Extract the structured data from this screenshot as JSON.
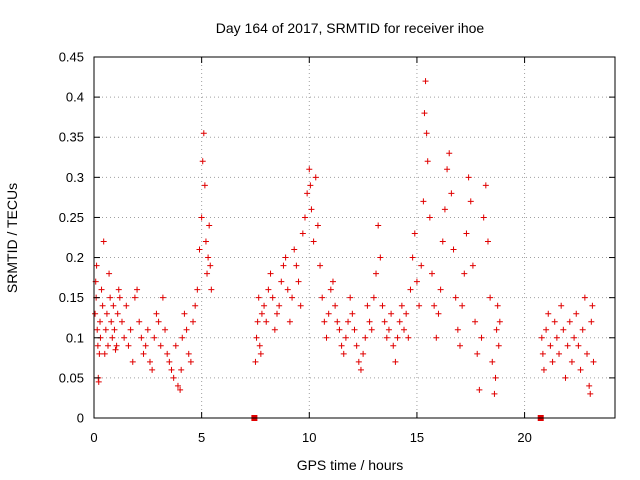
{
  "chart_data": {
    "type": "scatter",
    "title": "Day 164 of 2017, SRMTID for receiver ihoe",
    "xlabel": "GPS time / hours",
    "ylabel": "SRMTID / TECUs",
    "xlim": [
      0,
      24.2
    ],
    "ylim": [
      0,
      0.45
    ],
    "grid": true,
    "marker": "+",
    "color": "#e00000",
    "x_ticks": [
      0,
      5,
      10,
      15,
      20
    ],
    "x_tick_labels": [
      "0",
      "5",
      "10",
      "15",
      "20"
    ],
    "y_ticks": [
      0,
      0.05,
      0.1,
      0.15,
      0.2,
      0.25,
      0.3,
      0.35,
      0.4,
      0.45
    ],
    "y_tick_labels": [
      "0",
      "0.05",
      "0.1",
      "0.15",
      "0.2",
      "0.25",
      "0.3",
      "0.35",
      "0.4",
      "0.45"
    ],
    "gap_markers_x": [
      7.45,
      20.75
    ],
    "series": [
      {
        "name": "SRMTID",
        "points": [
          [
            0.05,
            0.13
          ],
          [
            0.08,
            0.17
          ],
          [
            0.1,
            0.15
          ],
          [
            0.12,
            0.19
          ],
          [
            0.15,
            0.11
          ],
          [
            0.18,
            0.09
          ],
          [
            0.2,
            0.05
          ],
          [
            0.22,
            0.045
          ],
          [
            0.25,
            0.08
          ],
          [
            0.28,
            0.12
          ],
          [
            0.3,
            0.1
          ],
          [
            0.35,
            0.16
          ],
          [
            0.4,
            0.14
          ],
          [
            0.45,
            0.22
          ],
          [
            0.5,
            0.08
          ],
          [
            0.55,
            0.11
          ],
          [
            0.6,
            0.13
          ],
          [
            0.65,
            0.09
          ],
          [
            0.7,
            0.18
          ],
          [
            0.75,
            0.15
          ],
          [
            0.8,
            0.12
          ],
          [
            0.85,
            0.1
          ],
          [
            0.9,
            0.14
          ],
          [
            0.95,
            0.11
          ],
          [
            1.0,
            0.085
          ],
          [
            1.05,
            0.09
          ],
          [
            1.1,
            0.13
          ],
          [
            1.15,
            0.16
          ],
          [
            1.2,
            0.15
          ],
          [
            1.3,
            0.12
          ],
          [
            1.4,
            0.1
          ],
          [
            1.5,
            0.14
          ],
          [
            1.6,
            0.09
          ],
          [
            1.7,
            0.11
          ],
          [
            1.8,
            0.07
          ],
          [
            1.9,
            0.15
          ],
          [
            2.0,
            0.16
          ],
          [
            2.1,
            0.12
          ],
          [
            2.2,
            0.1
          ],
          [
            2.3,
            0.08
          ],
          [
            2.4,
            0.09
          ],
          [
            2.5,
            0.11
          ],
          [
            2.6,
            0.07
          ],
          [
            2.7,
            0.06
          ],
          [
            2.8,
            0.1
          ],
          [
            2.9,
            0.13
          ],
          [
            3.0,
            0.12
          ],
          [
            3.1,
            0.09
          ],
          [
            3.2,
            0.15
          ],
          [
            3.3,
            0.11
          ],
          [
            3.4,
            0.08
          ],
          [
            3.5,
            0.07
          ],
          [
            3.6,
            0.06
          ],
          [
            3.7,
            0.05
          ],
          [
            3.8,
            0.09
          ],
          [
            3.9,
            0.04
          ],
          [
            4.0,
            0.035
          ],
          [
            4.05,
            0.06
          ],
          [
            4.1,
            0.1
          ],
          [
            4.2,
            0.13
          ],
          [
            4.3,
            0.11
          ],
          [
            4.4,
            0.08
          ],
          [
            4.5,
            0.07
          ],
          [
            4.6,
            0.12
          ],
          [
            4.7,
            0.14
          ],
          [
            4.8,
            0.16
          ],
          [
            4.9,
            0.21
          ],
          [
            5.0,
            0.25
          ],
          [
            5.05,
            0.32
          ],
          [
            5.1,
            0.355
          ],
          [
            5.15,
            0.29
          ],
          [
            5.2,
            0.22
          ],
          [
            5.25,
            0.18
          ],
          [
            5.3,
            0.2
          ],
          [
            5.35,
            0.24
          ],
          [
            5.4,
            0.19
          ],
          [
            5.45,
            0.16
          ],
          [
            7.5,
            0.07
          ],
          [
            7.55,
            0.1
          ],
          [
            7.6,
            0.12
          ],
          [
            7.65,
            0.15
          ],
          [
            7.7,
            0.09
          ],
          [
            7.75,
            0.08
          ],
          [
            7.8,
            0.13
          ],
          [
            7.9,
            0.14
          ],
          [
            8.0,
            0.12
          ],
          [
            8.1,
            0.16
          ],
          [
            8.2,
            0.18
          ],
          [
            8.3,
            0.15
          ],
          [
            8.4,
            0.11
          ],
          [
            8.5,
            0.13
          ],
          [
            8.6,
            0.14
          ],
          [
            8.7,
            0.17
          ],
          [
            8.8,
            0.19
          ],
          [
            8.9,
            0.2
          ],
          [
            9.0,
            0.16
          ],
          [
            9.1,
            0.12
          ],
          [
            9.2,
            0.15
          ],
          [
            9.3,
            0.21
          ],
          [
            9.4,
            0.19
          ],
          [
            9.5,
            0.17
          ],
          [
            9.6,
            0.14
          ],
          [
            9.7,
            0.23
          ],
          [
            9.8,
            0.25
          ],
          [
            9.9,
            0.28
          ],
          [
            10.0,
            0.31
          ],
          [
            10.05,
            0.29
          ],
          [
            10.1,
            0.26
          ],
          [
            10.2,
            0.22
          ],
          [
            10.3,
            0.3
          ],
          [
            10.4,
            0.24
          ],
          [
            10.5,
            0.19
          ],
          [
            10.6,
            0.15
          ],
          [
            10.7,
            0.12
          ],
          [
            10.8,
            0.1
          ],
          [
            10.9,
            0.13
          ],
          [
            11.0,
            0.16
          ],
          [
            11.1,
            0.17
          ],
          [
            11.2,
            0.14
          ],
          [
            11.3,
            0.12
          ],
          [
            11.4,
            0.11
          ],
          [
            11.5,
            0.09
          ],
          [
            11.6,
            0.08
          ],
          [
            11.7,
            0.1
          ],
          [
            11.8,
            0.12
          ],
          [
            11.9,
            0.15
          ],
          [
            12.0,
            0.13
          ],
          [
            12.1,
            0.11
          ],
          [
            12.2,
            0.09
          ],
          [
            12.3,
            0.07
          ],
          [
            12.4,
            0.06
          ],
          [
            12.5,
            0.08
          ],
          [
            12.6,
            0.1
          ],
          [
            12.7,
            0.14
          ],
          [
            12.8,
            0.12
          ],
          [
            12.9,
            0.11
          ],
          [
            13.0,
            0.15
          ],
          [
            13.1,
            0.18
          ],
          [
            13.2,
            0.24
          ],
          [
            13.3,
            0.2
          ],
          [
            13.4,
            0.14
          ],
          [
            13.5,
            0.12
          ],
          [
            13.6,
            0.1
          ],
          [
            13.7,
            0.11
          ],
          [
            13.8,
            0.13
          ],
          [
            13.9,
            0.09
          ],
          [
            14.0,
            0.07
          ],
          [
            14.1,
            0.1
          ],
          [
            14.2,
            0.12
          ],
          [
            14.3,
            0.14
          ],
          [
            14.4,
            0.11
          ],
          [
            14.5,
            0.13
          ],
          [
            14.6,
            0.1
          ],
          [
            14.7,
            0.16
          ],
          [
            14.8,
            0.2
          ],
          [
            14.9,
            0.23
          ],
          [
            15.0,
            0.17
          ],
          [
            15.1,
            0.14
          ],
          [
            15.2,
            0.19
          ],
          [
            15.3,
            0.27
          ],
          [
            15.35,
            0.38
          ],
          [
            15.4,
            0.42
          ],
          [
            15.45,
            0.355
          ],
          [
            15.5,
            0.32
          ],
          [
            15.6,
            0.25
          ],
          [
            15.7,
            0.18
          ],
          [
            15.8,
            0.14
          ],
          [
            15.9,
            0.1
          ],
          [
            16.0,
            0.13
          ],
          [
            16.1,
            0.16
          ],
          [
            16.2,
            0.22
          ],
          [
            16.3,
            0.26
          ],
          [
            16.4,
            0.31
          ],
          [
            16.5,
            0.33
          ],
          [
            16.6,
            0.28
          ],
          [
            16.7,
            0.21
          ],
          [
            16.8,
            0.15
          ],
          [
            16.9,
            0.11
          ],
          [
            17.0,
            0.09
          ],
          [
            17.1,
            0.14
          ],
          [
            17.2,
            0.18
          ],
          [
            17.3,
            0.23
          ],
          [
            17.4,
            0.3
          ],
          [
            17.5,
            0.27
          ],
          [
            17.6,
            0.19
          ],
          [
            17.7,
            0.12
          ],
          [
            17.8,
            0.08
          ],
          [
            17.9,
            0.035
          ],
          [
            18.0,
            0.1
          ],
          [
            18.1,
            0.25
          ],
          [
            18.2,
            0.29
          ],
          [
            18.3,
            0.22
          ],
          [
            18.4,
            0.15
          ],
          [
            18.5,
            0.07
          ],
          [
            18.6,
            0.03
          ],
          [
            18.65,
            0.05
          ],
          [
            18.7,
            0.11
          ],
          [
            18.75,
            0.14
          ],
          [
            18.8,
            0.09
          ],
          [
            18.85,
            0.12
          ],
          [
            20.8,
            0.1
          ],
          [
            20.85,
            0.08
          ],
          [
            20.9,
            0.06
          ],
          [
            21.0,
            0.11
          ],
          [
            21.1,
            0.13
          ],
          [
            21.2,
            0.09
          ],
          [
            21.3,
            0.07
          ],
          [
            21.4,
            0.12
          ],
          [
            21.5,
            0.1
          ],
          [
            21.6,
            0.08
          ],
          [
            21.7,
            0.14
          ],
          [
            21.8,
            0.11
          ],
          [
            21.9,
            0.05
          ],
          [
            22.0,
            0.09
          ],
          [
            22.1,
            0.12
          ],
          [
            22.2,
            0.07
          ],
          [
            22.3,
            0.1
          ],
          [
            22.4,
            0.13
          ],
          [
            22.5,
            0.09
          ],
          [
            22.6,
            0.06
          ],
          [
            22.7,
            0.11
          ],
          [
            22.8,
            0.15
          ],
          [
            22.9,
            0.08
          ],
          [
            23.0,
            0.04
          ],
          [
            23.05,
            0.03
          ],
          [
            23.1,
            0.12
          ],
          [
            23.15,
            0.14
          ],
          [
            23.2,
            0.07
          ]
        ]
      }
    ]
  }
}
